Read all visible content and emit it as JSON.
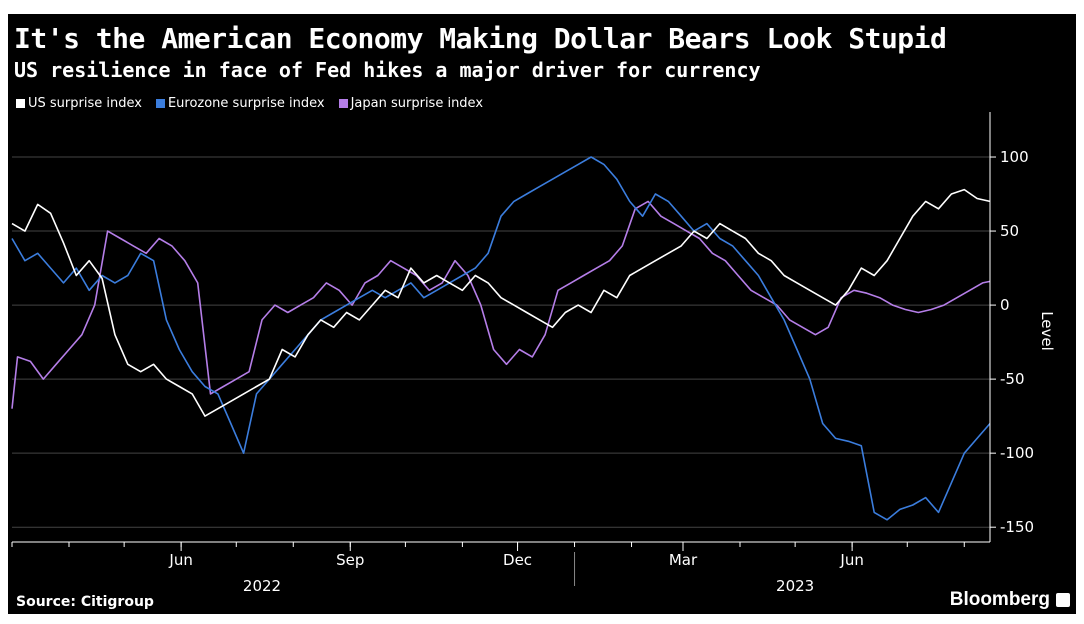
{
  "header": {
    "title": "It's the American Economy Making Dollar Bears Look Stupid",
    "subtitle": "US resilience in face of Fed hikes a major driver for currency"
  },
  "footer": {
    "source": "Source: Citigroup",
    "brand": "Bloomberg"
  },
  "colors": {
    "background": "#000000",
    "us": "#ffffff",
    "eurozone": "#3b7ddd",
    "japan": "#b57ee8",
    "grid": "#444444"
  },
  "chart_data": {
    "type": "line",
    "ylabel": "Level",
    "ylim": [
      -160,
      125
    ],
    "y_ticks": [
      100,
      50,
      0,
      -50,
      -100,
      -150
    ],
    "x_range": [
      "2022-03-01",
      "2023-08-15"
    ],
    "x_ticks": [
      {
        "date": "2022-06-01",
        "label": "Jun"
      },
      {
        "date": "2022-09-01",
        "label": "Sep"
      },
      {
        "date": "2022-12-01",
        "label": "Dec"
      },
      {
        "date": "2023-03-01",
        "label": "Mar"
      },
      {
        "date": "2023-06-01",
        "label": "Jun"
      }
    ],
    "year_labels": [
      {
        "date": "2022-07-15",
        "label": "2022"
      },
      {
        "date": "2023-05-01",
        "label": "2023"
      }
    ],
    "grid": "horizontal",
    "legend_position": "top-left",
    "series": [
      {
        "name": "US surprise index",
        "color": "#ffffff",
        "points": [
          [
            "2022-03-01",
            55
          ],
          [
            "2022-03-08",
            50
          ],
          [
            "2022-03-15",
            68
          ],
          [
            "2022-03-22",
            62
          ],
          [
            "2022-03-29",
            42
          ],
          [
            "2022-04-05",
            20
          ],
          [
            "2022-04-12",
            30
          ],
          [
            "2022-04-19",
            18
          ],
          [
            "2022-04-26",
            -20
          ],
          [
            "2022-05-03",
            -40
          ],
          [
            "2022-05-10",
            -45
          ],
          [
            "2022-05-17",
            -40
          ],
          [
            "2022-05-24",
            -50
          ],
          [
            "2022-05-31",
            -55
          ],
          [
            "2022-06-07",
            -60
          ],
          [
            "2022-06-14",
            -75
          ],
          [
            "2022-06-21",
            -70
          ],
          [
            "2022-06-28",
            -65
          ],
          [
            "2022-07-05",
            -60
          ],
          [
            "2022-07-12",
            -55
          ],
          [
            "2022-07-19",
            -50
          ],
          [
            "2022-07-26",
            -30
          ],
          [
            "2022-08-02",
            -35
          ],
          [
            "2022-08-09",
            -20
          ],
          [
            "2022-08-16",
            -10
          ],
          [
            "2022-08-23",
            -15
          ],
          [
            "2022-08-30",
            -5
          ],
          [
            "2022-09-06",
            -10
          ],
          [
            "2022-09-13",
            0
          ],
          [
            "2022-09-20",
            10
          ],
          [
            "2022-09-27",
            5
          ],
          [
            "2022-10-04",
            25
          ],
          [
            "2022-10-11",
            15
          ],
          [
            "2022-10-18",
            20
          ],
          [
            "2022-10-25",
            15
          ],
          [
            "2022-11-01",
            10
          ],
          [
            "2022-11-08",
            20
          ],
          [
            "2022-11-15",
            15
          ],
          [
            "2022-11-22",
            5
          ],
          [
            "2022-11-29",
            0
          ],
          [
            "2022-12-06",
            -5
          ],
          [
            "2022-12-13",
            -10
          ],
          [
            "2022-12-20",
            -15
          ],
          [
            "2022-12-27",
            -5
          ],
          [
            "2023-01-03",
            0
          ],
          [
            "2023-01-10",
            -5
          ],
          [
            "2023-01-17",
            10
          ],
          [
            "2023-01-24",
            5
          ],
          [
            "2023-01-31",
            20
          ],
          [
            "2023-02-07",
            25
          ],
          [
            "2023-02-14",
            30
          ],
          [
            "2023-02-21",
            35
          ],
          [
            "2023-02-28",
            40
          ],
          [
            "2023-03-07",
            50
          ],
          [
            "2023-03-14",
            45
          ],
          [
            "2023-03-21",
            55
          ],
          [
            "2023-03-28",
            50
          ],
          [
            "2023-04-04",
            45
          ],
          [
            "2023-04-11",
            35
          ],
          [
            "2023-04-18",
            30
          ],
          [
            "2023-04-25",
            20
          ],
          [
            "2023-05-02",
            15
          ],
          [
            "2023-05-09",
            10
          ],
          [
            "2023-05-16",
            5
          ],
          [
            "2023-05-23",
            0
          ],
          [
            "2023-05-30",
            10
          ],
          [
            "2023-06-06",
            25
          ],
          [
            "2023-06-13",
            20
          ],
          [
            "2023-06-20",
            30
          ],
          [
            "2023-06-27",
            45
          ],
          [
            "2023-07-04",
            60
          ],
          [
            "2023-07-11",
            70
          ],
          [
            "2023-07-18",
            65
          ],
          [
            "2023-07-25",
            75
          ],
          [
            "2023-08-01",
            78
          ],
          [
            "2023-08-08",
            72
          ],
          [
            "2023-08-15",
            70
          ]
        ]
      },
      {
        "name": "Eurozone surprise index",
        "color": "#3b7ddd",
        "points": [
          [
            "2022-03-01",
            45
          ],
          [
            "2022-03-08",
            30
          ],
          [
            "2022-03-15",
            35
          ],
          [
            "2022-03-22",
            25
          ],
          [
            "2022-03-29",
            15
          ],
          [
            "2022-04-05",
            25
          ],
          [
            "2022-04-12",
            10
          ],
          [
            "2022-04-19",
            20
          ],
          [
            "2022-04-26",
            15
          ],
          [
            "2022-05-03",
            20
          ],
          [
            "2022-05-10",
            35
          ],
          [
            "2022-05-17",
            30
          ],
          [
            "2022-05-24",
            -10
          ],
          [
            "2022-05-31",
            -30
          ],
          [
            "2022-06-07",
            -45
          ],
          [
            "2022-06-14",
            -55
          ],
          [
            "2022-06-21",
            -60
          ],
          [
            "2022-06-28",
            -80
          ],
          [
            "2022-07-05",
            -100
          ],
          [
            "2022-07-12",
            -60
          ],
          [
            "2022-07-19",
            -50
          ],
          [
            "2022-07-26",
            -40
          ],
          [
            "2022-08-02",
            -30
          ],
          [
            "2022-08-09",
            -20
          ],
          [
            "2022-08-16",
            -10
          ],
          [
            "2022-08-23",
            -5
          ],
          [
            "2022-08-30",
            0
          ],
          [
            "2022-09-06",
            5
          ],
          [
            "2022-09-13",
            10
          ],
          [
            "2022-09-20",
            5
          ],
          [
            "2022-09-27",
            10
          ],
          [
            "2022-10-04",
            15
          ],
          [
            "2022-10-11",
            5
          ],
          [
            "2022-10-18",
            10
          ],
          [
            "2022-10-25",
            15
          ],
          [
            "2022-11-01",
            20
          ],
          [
            "2022-11-08",
            25
          ],
          [
            "2022-11-15",
            35
          ],
          [
            "2022-11-22",
            60
          ],
          [
            "2022-11-29",
            70
          ],
          [
            "2022-12-06",
            75
          ],
          [
            "2022-12-13",
            80
          ],
          [
            "2022-12-20",
            85
          ],
          [
            "2022-12-27",
            90
          ],
          [
            "2023-01-03",
            95
          ],
          [
            "2023-01-10",
            100
          ],
          [
            "2023-01-17",
            95
          ],
          [
            "2023-01-24",
            85
          ],
          [
            "2023-01-31",
            70
          ],
          [
            "2023-02-07",
            60
          ],
          [
            "2023-02-14",
            75
          ],
          [
            "2023-02-21",
            70
          ],
          [
            "2023-02-28",
            60
          ],
          [
            "2023-03-07",
            50
          ],
          [
            "2023-03-14",
            55
          ],
          [
            "2023-03-21",
            45
          ],
          [
            "2023-03-28",
            40
          ],
          [
            "2023-04-04",
            30
          ],
          [
            "2023-04-11",
            20
          ],
          [
            "2023-04-18",
            5
          ],
          [
            "2023-04-25",
            -10
          ],
          [
            "2023-05-02",
            -30
          ],
          [
            "2023-05-09",
            -50
          ],
          [
            "2023-05-16",
            -80
          ],
          [
            "2023-05-23",
            -90
          ],
          [
            "2023-05-30",
            -92
          ],
          [
            "2023-06-06",
            -95
          ],
          [
            "2023-06-13",
            -140
          ],
          [
            "2023-06-20",
            -145
          ],
          [
            "2023-06-27",
            -138
          ],
          [
            "2023-07-04",
            -135
          ],
          [
            "2023-07-11",
            -130
          ],
          [
            "2023-07-18",
            -140
          ],
          [
            "2023-07-25",
            -120
          ],
          [
            "2023-08-01",
            -100
          ],
          [
            "2023-08-08",
            -90
          ],
          [
            "2023-08-15",
            -80
          ]
        ]
      },
      {
        "name": "Japan surprise index",
        "color": "#b57ee8",
        "points": [
          [
            "2022-03-01",
            -70
          ],
          [
            "2022-03-04",
            -35
          ],
          [
            "2022-03-11",
            -38
          ],
          [
            "2022-03-18",
            -50
          ],
          [
            "2022-03-25",
            -40
          ],
          [
            "2022-04-01",
            -30
          ],
          [
            "2022-04-08",
            -20
          ],
          [
            "2022-04-15",
            0
          ],
          [
            "2022-04-22",
            50
          ],
          [
            "2022-04-29",
            45
          ],
          [
            "2022-05-06",
            40
          ],
          [
            "2022-05-13",
            35
          ],
          [
            "2022-05-20",
            45
          ],
          [
            "2022-05-27",
            40
          ],
          [
            "2022-06-03",
            30
          ],
          [
            "2022-06-10",
            15
          ],
          [
            "2022-06-17",
            -60
          ],
          [
            "2022-06-24",
            -55
          ],
          [
            "2022-07-01",
            -50
          ],
          [
            "2022-07-08",
            -45
          ],
          [
            "2022-07-15",
            -10
          ],
          [
            "2022-07-22",
            0
          ],
          [
            "2022-07-29",
            -5
          ],
          [
            "2022-08-05",
            0
          ],
          [
            "2022-08-12",
            5
          ],
          [
            "2022-08-19",
            15
          ],
          [
            "2022-08-26",
            10
          ],
          [
            "2022-09-02",
            0
          ],
          [
            "2022-09-09",
            15
          ],
          [
            "2022-09-16",
            20
          ],
          [
            "2022-09-23",
            30
          ],
          [
            "2022-09-30",
            25
          ],
          [
            "2022-10-07",
            20
          ],
          [
            "2022-10-14",
            10
          ],
          [
            "2022-10-21",
            15
          ],
          [
            "2022-10-28",
            30
          ],
          [
            "2022-11-04",
            20
          ],
          [
            "2022-11-11",
            0
          ],
          [
            "2022-11-18",
            -30
          ],
          [
            "2022-11-25",
            -40
          ],
          [
            "2022-12-02",
            -30
          ],
          [
            "2022-12-09",
            -35
          ],
          [
            "2022-12-16",
            -20
          ],
          [
            "2022-12-23",
            10
          ],
          [
            "2022-12-30",
            15
          ],
          [
            "2023-01-06",
            20
          ],
          [
            "2023-01-13",
            25
          ],
          [
            "2023-01-20",
            30
          ],
          [
            "2023-01-27",
            40
          ],
          [
            "2023-02-03",
            65
          ],
          [
            "2023-02-10",
            70
          ],
          [
            "2023-02-17",
            60
          ],
          [
            "2023-02-24",
            55
          ],
          [
            "2023-03-03",
            50
          ],
          [
            "2023-03-10",
            45
          ],
          [
            "2023-03-17",
            35
          ],
          [
            "2023-03-24",
            30
          ],
          [
            "2023-03-31",
            20
          ],
          [
            "2023-04-07",
            10
          ],
          [
            "2023-04-14",
            5
          ],
          [
            "2023-04-21",
            0
          ],
          [
            "2023-04-28",
            -10
          ],
          [
            "2023-05-05",
            -15
          ],
          [
            "2023-05-12",
            -20
          ],
          [
            "2023-05-19",
            -15
          ],
          [
            "2023-05-26",
            5
          ],
          [
            "2023-06-02",
            10
          ],
          [
            "2023-06-09",
            8
          ],
          [
            "2023-06-16",
            5
          ],
          [
            "2023-06-23",
            0
          ],
          [
            "2023-06-30",
            -3
          ],
          [
            "2023-07-07",
            -5
          ],
          [
            "2023-07-14",
            -3
          ],
          [
            "2023-07-21",
            0
          ],
          [
            "2023-07-28",
            5
          ],
          [
            "2023-08-04",
            10
          ],
          [
            "2023-08-11",
            15
          ],
          [
            "2023-08-15",
            16
          ]
        ]
      }
    ]
  }
}
